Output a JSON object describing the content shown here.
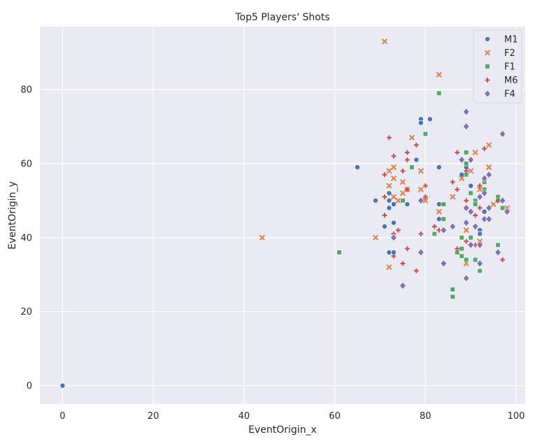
{
  "chart_data": {
    "type": "scatter",
    "title": "Top5 Players' Shots",
    "xlabel": "EventOrigin_x",
    "ylabel": "EventOrigin_y",
    "xlim": [
      -5,
      102
    ],
    "ylim": [
      -5,
      97
    ],
    "x_ticks": [
      0,
      20,
      40,
      60,
      80,
      100
    ],
    "y_ticks": [
      0,
      20,
      40,
      60,
      80
    ],
    "grid": true,
    "background": "#EAEAF2",
    "legend_position": "top-right",
    "series": [
      {
        "name": "M1",
        "marker": "circle",
        "color": "#4C72B0",
        "points": [
          [
            0,
            0
          ],
          [
            65,
            59
          ],
          [
            69,
            50
          ],
          [
            71,
            43
          ],
          [
            72,
            52
          ],
          [
            72,
            50
          ],
          [
            72,
            48
          ],
          [
            72,
            36
          ],
          [
            73,
            44
          ],
          [
            73,
            49
          ],
          [
            73,
            36
          ],
          [
            76,
            49
          ],
          [
            78,
            61
          ],
          [
            79,
            72
          ],
          [
            79,
            71
          ],
          [
            81,
            72
          ],
          [
            83,
            59
          ],
          [
            83,
            49
          ],
          [
            83,
            45
          ],
          [
            88,
            57
          ],
          [
            89,
            59
          ],
          [
            90,
            54
          ],
          [
            92,
            42
          ],
          [
            92,
            41
          ],
          [
            93,
            47
          ]
        ]
      },
      {
        "name": "F2",
        "marker": "x",
        "color": "#DD8452",
        "points": [
          [
            44,
            40
          ],
          [
            69,
            40
          ],
          [
            71,
            93
          ],
          [
            72,
            58
          ],
          [
            72,
            54
          ],
          [
            72,
            32
          ],
          [
            73,
            59
          ],
          [
            73,
            56
          ],
          [
            73,
            51
          ],
          [
            74,
            50
          ],
          [
            75,
            55
          ],
          [
            75,
            52
          ],
          [
            76,
            53
          ],
          [
            77,
            67
          ],
          [
            79,
            58
          ],
          [
            79,
            53
          ],
          [
            80,
            50
          ],
          [
            83,
            84
          ],
          [
            83,
            47
          ],
          [
            86,
            51
          ],
          [
            88,
            56
          ],
          [
            89,
            42
          ],
          [
            89,
            33
          ],
          [
            90,
            58
          ],
          [
            91,
            63
          ],
          [
            92,
            53
          ],
          [
            92,
            39
          ],
          [
            94,
            65
          ],
          [
            94,
            59
          ],
          [
            95,
            49
          ],
          [
            98,
            48
          ]
        ]
      },
      {
        "name": "F1",
        "marker": "square",
        "color": "#55A868",
        "points": [
          [
            61,
            36
          ],
          [
            75,
            50
          ],
          [
            77,
            59
          ],
          [
            80,
            68
          ],
          [
            82,
            41
          ],
          [
            83,
            79
          ],
          [
            84,
            49
          ],
          [
            84,
            45
          ],
          [
            86,
            26
          ],
          [
            86,
            24
          ],
          [
            87,
            36
          ],
          [
            88,
            40
          ],
          [
            88,
            35
          ],
          [
            88,
            37
          ],
          [
            89,
            63
          ],
          [
            89,
            60
          ],
          [
            89,
            57
          ],
          [
            89,
            34
          ],
          [
            90,
            52
          ],
          [
            90,
            40
          ],
          [
            91,
            50
          ],
          [
            91,
            49
          ],
          [
            91,
            43
          ],
          [
            91,
            34
          ],
          [
            92,
            31
          ],
          [
            93,
            55
          ],
          [
            93,
            53
          ],
          [
            96,
            51
          ],
          [
            96,
            50
          ],
          [
            96,
            38
          ],
          [
            97,
            48
          ]
        ]
      },
      {
        "name": "M6",
        "marker": "plus",
        "color": "#C44E52",
        "points": [
          [
            71,
            57
          ],
          [
            71,
            51
          ],
          [
            71,
            46
          ],
          [
            72,
            67
          ],
          [
            73,
            62
          ],
          [
            73,
            41
          ],
          [
            73,
            35
          ],
          [
            74,
            42
          ],
          [
            75,
            58
          ],
          [
            75,
            33
          ],
          [
            76,
            63
          ],
          [
            76,
            61
          ],
          [
            76,
            53
          ],
          [
            76,
            37
          ],
          [
            78,
            65
          ],
          [
            78,
            31
          ],
          [
            79,
            41
          ],
          [
            80,
            54
          ],
          [
            80,
            51
          ],
          [
            82,
            43
          ],
          [
            83,
            42
          ],
          [
            86,
            55
          ],
          [
            87,
            63
          ],
          [
            87,
            53
          ],
          [
            87,
            37
          ],
          [
            88,
            61
          ],
          [
            89,
            58
          ],
          [
            89,
            50
          ],
          [
            89,
            39
          ],
          [
            91,
            46
          ],
          [
            91,
            38
          ],
          [
            92,
            54
          ],
          [
            92,
            48
          ],
          [
            93,
            64
          ],
          [
            96,
            50
          ],
          [
            97,
            34
          ]
        ]
      },
      {
        "name": "F4",
        "marker": "diamond",
        "color": "#8172B3",
        "points": [
          [
            73,
            40
          ],
          [
            75,
            27
          ],
          [
            79,
            50
          ],
          [
            79,
            36
          ],
          [
            84,
            42
          ],
          [
            84,
            33
          ],
          [
            86,
            43
          ],
          [
            88,
            61
          ],
          [
            89,
            74
          ],
          [
            89,
            70
          ],
          [
            89,
            48
          ],
          [
            89,
            44
          ],
          [
            89,
            29
          ],
          [
            90,
            61
          ],
          [
            90,
            47
          ],
          [
            90,
            38
          ],
          [
            91,
            43
          ],
          [
            92,
            51
          ],
          [
            92,
            38
          ],
          [
            92,
            33
          ],
          [
            93,
            56
          ],
          [
            93,
            52
          ],
          [
            93,
            45
          ],
          [
            94,
            57
          ],
          [
            94,
            48
          ],
          [
            94,
            45
          ],
          [
            96,
            36
          ],
          [
            97,
            68
          ],
          [
            97,
            50
          ],
          [
            98,
            47
          ]
        ]
      }
    ]
  }
}
